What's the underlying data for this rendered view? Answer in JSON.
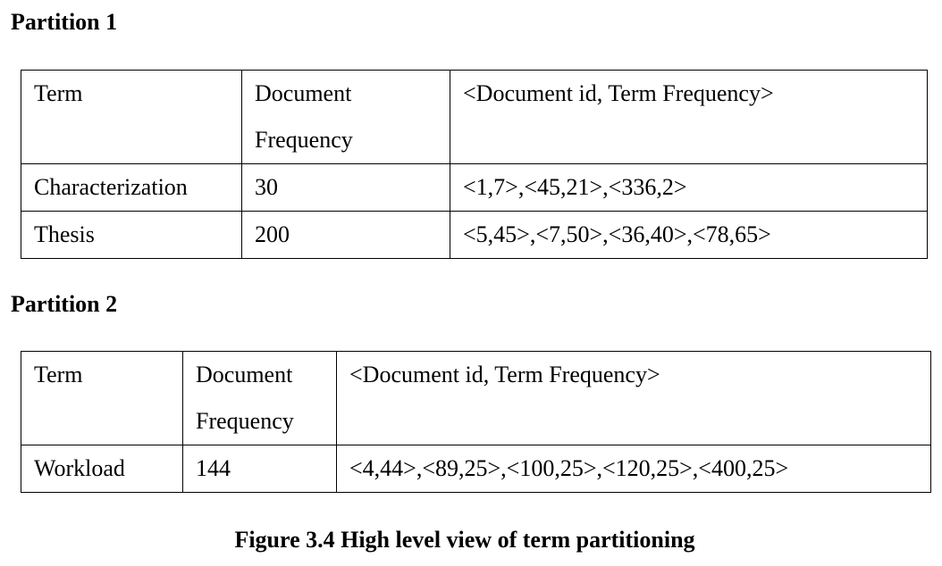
{
  "partition1": {
    "heading": "Partition 1",
    "header": {
      "term": "Term",
      "doc_freq_line1": "Document",
      "doc_freq_line2": "Frequency",
      "postings": "<Document id, Term Frequency>"
    },
    "rows": [
      {
        "term": "Characterization",
        "doc_freq": "30",
        "postings": "<1,7>,<45,21>,<336,2>"
      },
      {
        "term": "Thesis",
        "doc_freq": "200",
        "postings": "<5,45>,<7,50>,<36,40>,<78,65>"
      }
    ]
  },
  "partition2": {
    "heading": "Partition 2",
    "header": {
      "term": "Term",
      "doc_freq_line1": "Document",
      "doc_freq_line2": "Frequency",
      "postings": "<Document id, Term Frequency>"
    },
    "rows": [
      {
        "term": "Workload",
        "doc_freq": "144",
        "postings": "<4,44>,<89,25>,<100,25>,<120,25>,<400,25>"
      }
    ]
  },
  "caption": "Figure 3.4 High level view of term partitioning"
}
